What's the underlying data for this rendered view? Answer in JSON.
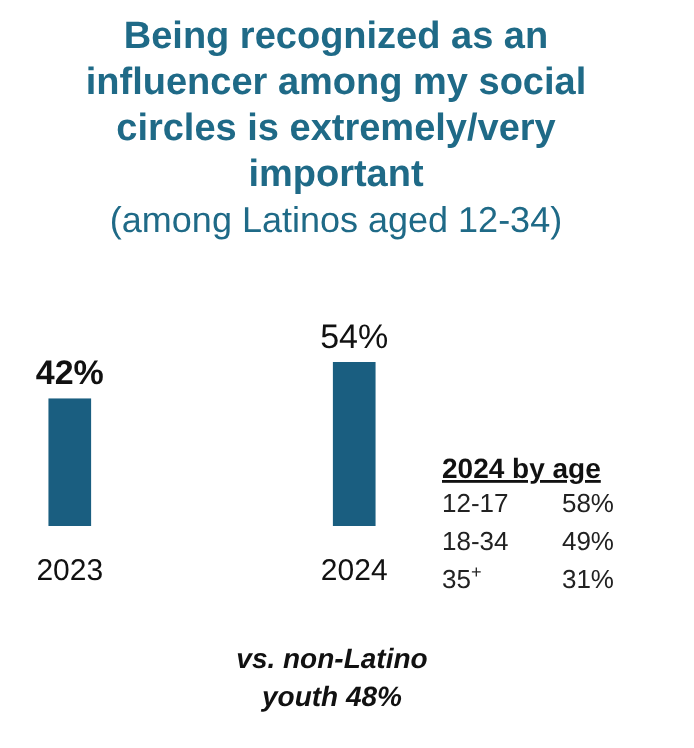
{
  "chart_data": {
    "type": "bar",
    "title": "Being recognized as an influencer among my social circles is extremely/very important",
    "subtitle": "(among Latinos aged 12-34)",
    "categories": [
      "2023",
      "2024"
    ],
    "values": [
      42,
      54
    ],
    "color": "#1a5e80",
    "value_labels": [
      "42%",
      "54%"
    ],
    "annotations": [
      "2024 by age",
      "12-17",
      "58%",
      "18-34",
      "49%",
      "35$^{+}$",
      "31%",
      "vs. non-Latino youth 48%"
    ]
  }
}
